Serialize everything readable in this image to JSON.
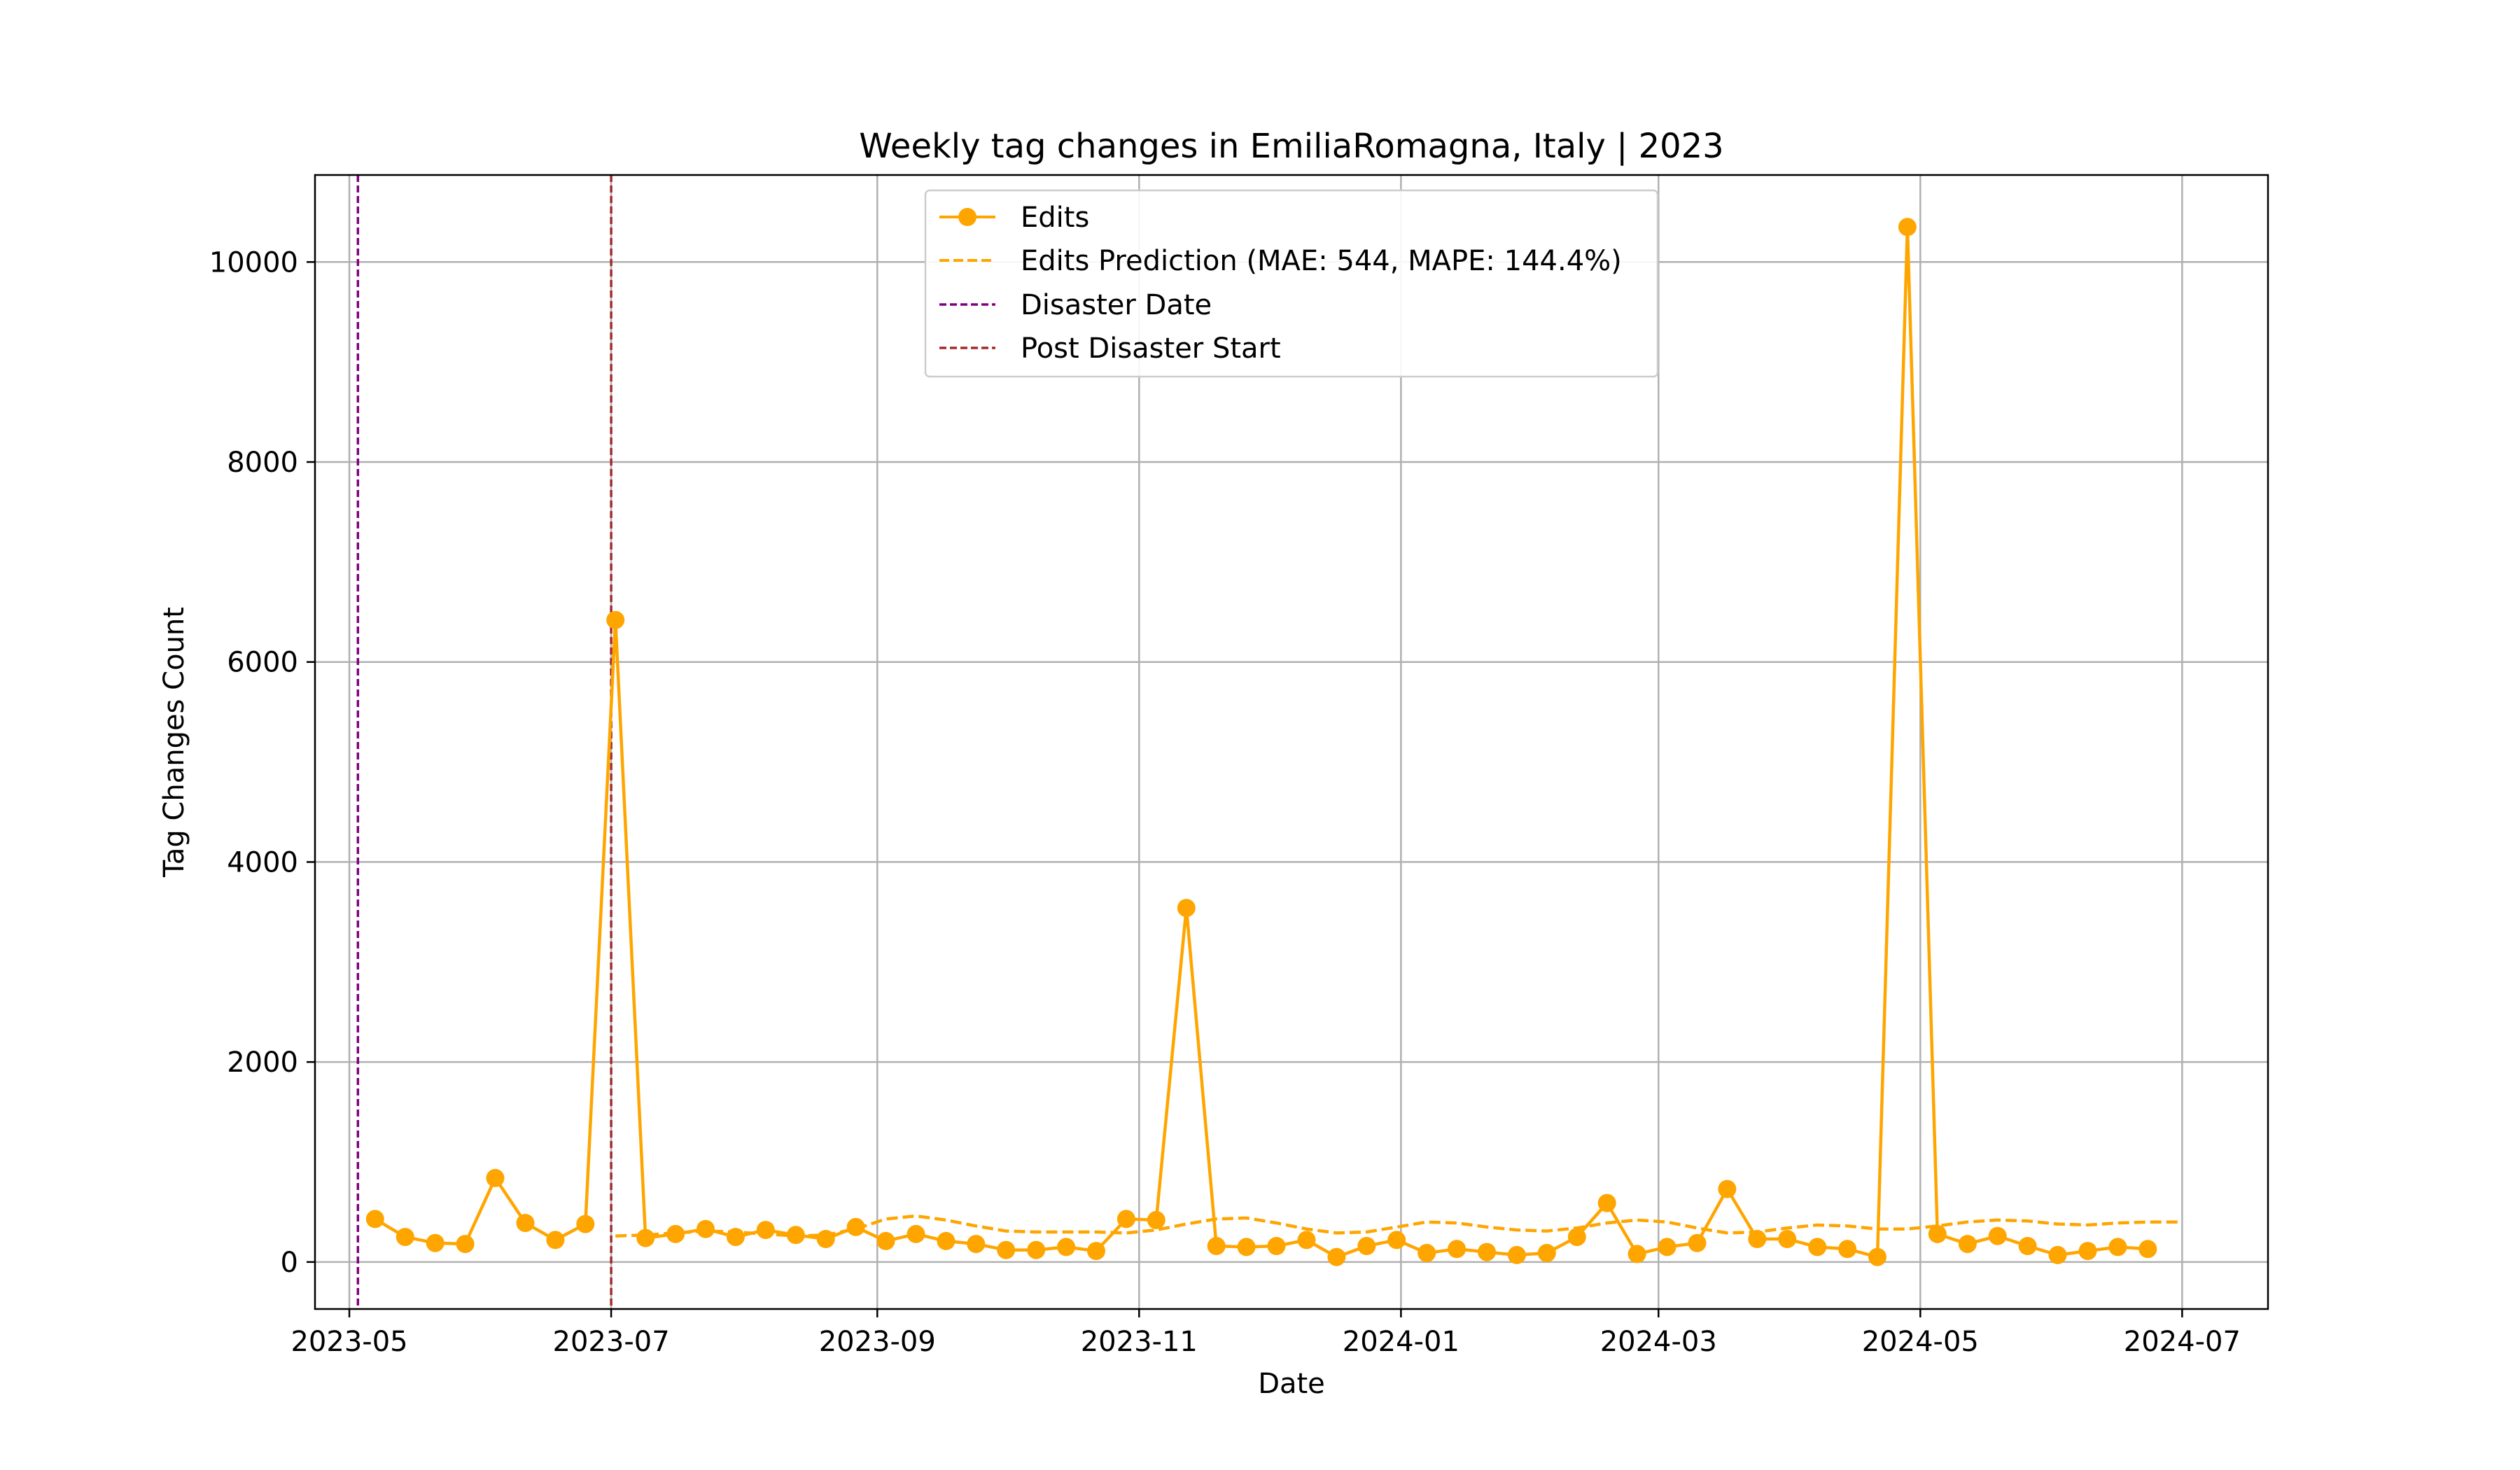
{
  "chart_data": {
    "type": "line",
    "title": "Weekly tag changes in EmiliaRomagna, Italy | 2023",
    "xlabel": "Date",
    "ylabel": "Tag Changes Count",
    "xlim": [
      "2023-04-23",
      "2024-07-21"
    ],
    "ylim": [
      -470,
      10870
    ],
    "x_ticks": [
      "2023-05",
      "2023-07",
      "2023-09",
      "2023-11",
      "2024-01",
      "2024-03",
      "2024-05",
      "2024-07"
    ],
    "x_tick_dates": [
      "2023-05-01",
      "2023-07-01",
      "2023-09-01",
      "2023-11-01",
      "2024-01-01",
      "2024-03-01",
      "2024-05-01",
      "2024-07-01"
    ],
    "y_ticks": [
      0,
      2000,
      4000,
      6000,
      8000,
      10000
    ],
    "grid": true,
    "legend_position": "top-center",
    "colors": {
      "edits": "#ffa500",
      "prediction": "#ffa500",
      "disaster": "#800080",
      "post_disaster": "#a52a2a",
      "grid": "#b0b0b0"
    },
    "series": [
      {
        "name": "Edits",
        "style": "solid-line-with-markers",
        "x": [
          "2023-05-07",
          "2023-05-14",
          "2023-05-21",
          "2023-05-28",
          "2023-06-04",
          "2023-06-11",
          "2023-06-18",
          "2023-06-25",
          "2023-07-02",
          "2023-07-09",
          "2023-07-16",
          "2023-07-23",
          "2023-07-30",
          "2023-08-06",
          "2023-08-13",
          "2023-08-20",
          "2023-08-27",
          "2023-09-03",
          "2023-09-10",
          "2023-09-17",
          "2023-09-24",
          "2023-10-01",
          "2023-10-08",
          "2023-10-15",
          "2023-10-22",
          "2023-10-29",
          "2023-11-05",
          "2023-11-12",
          "2023-11-19",
          "2023-11-26",
          "2023-12-03",
          "2023-12-10",
          "2023-12-17",
          "2023-12-24",
          "2023-12-31",
          "2024-01-07",
          "2024-01-14",
          "2024-01-21",
          "2024-01-28",
          "2024-02-04",
          "2024-02-11",
          "2024-02-18",
          "2024-02-25",
          "2024-03-03",
          "2024-03-10",
          "2024-03-17",
          "2024-03-24",
          "2024-03-31",
          "2024-04-07",
          "2024-04-14",
          "2024-04-21",
          "2024-04-28",
          "2024-05-05",
          "2024-05-12",
          "2024-05-19",
          "2024-05-26",
          "2024-06-02",
          "2024-06-09",
          "2024-06-16",
          "2024-06-23"
        ],
        "values": [
          430,
          250,
          190,
          180,
          840,
          390,
          220,
          380,
          6420,
          240,
          280,
          330,
          250,
          320,
          270,
          230,
          350,
          210,
          280,
          210,
          180,
          120,
          120,
          150,
          110,
          430,
          420,
          3540,
          160,
          150,
          160,
          220,
          50,
          160,
          220,
          90,
          130,
          100,
          70,
          90,
          250,
          590,
          80,
          150,
          190,
          730,
          230,
          230,
          150,
          130,
          50,
          10350,
          280,
          180,
          260,
          160,
          70,
          110,
          150,
          130
        ]
      },
      {
        "name": "Edits Prediction (MAE: 544, MAPE: 144.4%)",
        "style": "dashed",
        "x": [
          "2023-07-02",
          "2023-07-09",
          "2023-07-16",
          "2023-07-23",
          "2023-07-30",
          "2023-08-06",
          "2023-08-13",
          "2023-08-20",
          "2023-08-27",
          "2023-09-03",
          "2023-09-10",
          "2023-09-17",
          "2023-09-24",
          "2023-10-01",
          "2023-10-08",
          "2023-10-15",
          "2023-10-22",
          "2023-10-29",
          "2023-11-05",
          "2023-11-12",
          "2023-11-19",
          "2023-11-26",
          "2023-12-03",
          "2023-12-10",
          "2023-12-17",
          "2023-12-24",
          "2023-12-31",
          "2024-01-07",
          "2024-01-14",
          "2024-01-21",
          "2024-01-28",
          "2024-02-04",
          "2024-02-11",
          "2024-02-18",
          "2024-02-25",
          "2024-03-03",
          "2024-03-10",
          "2024-03-17",
          "2024-03-24",
          "2024-03-31",
          "2024-04-07",
          "2024-04-14",
          "2024-04-21",
          "2024-04-28",
          "2024-05-05",
          "2024-05-12",
          "2024-05-19",
          "2024-05-26",
          "2024-06-02",
          "2024-06-09",
          "2024-06-16",
          "2024-06-23",
          "2024-06-30"
        ],
        "values": [
          260,
          270,
          290,
          310,
          300,
          280,
          260,
          270,
          330,
          430,
          460,
          420,
          360,
          310,
          300,
          300,
          300,
          290,
          320,
          380,
          430,
          440,
          390,
          330,
          290,
          300,
          350,
          400,
          390,
          350,
          320,
          310,
          340,
          390,
          420,
          400,
          340,
          290,
          300,
          340,
          370,
          360,
          330,
          330,
          360,
          400,
          420,
          410,
          380,
          370,
          390,
          400,
          400
        ]
      }
    ],
    "vertical_lines": [
      {
        "name": "Disaster Date",
        "x": "2023-05-03",
        "style": "dashed"
      },
      {
        "name": "Post Disaster Start",
        "x": "2023-07-01",
        "style": "dashed"
      }
    ]
  }
}
